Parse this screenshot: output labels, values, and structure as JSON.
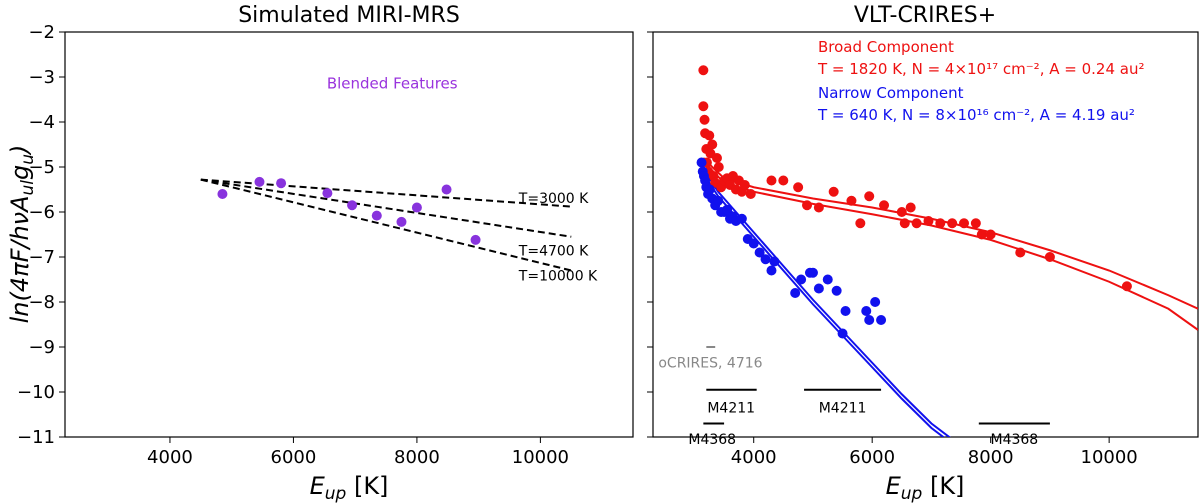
{
  "chart_data": [
    {
      "type": "scatter",
      "title": "Simulated MIRI-MRS",
      "xlabel": "E_up [K]",
      "ylabel": "ln(4πF/hνA_ul g_u)",
      "xlim": [
        2300,
        11500
      ],
      "ylim": [
        -11,
        -2
      ],
      "xticks": [
        4000,
        6000,
        8000,
        10000
      ],
      "yticks": [
        -2,
        -3,
        -4,
        -5,
        -6,
        -7,
        -8,
        -9,
        -10,
        -11
      ],
      "annotation": {
        "text": "Blended Features",
        "color": "#9933dd",
        "x": 7600,
        "y": -3.25
      },
      "series": [
        {
          "name": "MIRI points",
          "color": "#8833dd",
          "points": [
            [
              4850,
              -5.6
            ],
            [
              5450,
              -5.33
            ],
            [
              5800,
              -5.36
            ],
            [
              6550,
              -5.58
            ],
            [
              6950,
              -5.85
            ],
            [
              7350,
              -6.08
            ],
            [
              7750,
              -6.22
            ],
            [
              8000,
              -5.9
            ],
            [
              8480,
              -5.5
            ],
            [
              8950,
              -6.62
            ]
          ]
        }
      ],
      "fit_lines": [
        {
          "label": "T=3000 K",
          "x": [
            4500,
            10500
          ],
          "y": [
            -5.28,
            -5.88
          ],
          "label_x": 9650,
          "label_y": -5.8
        },
        {
          "label": "T=4700 K",
          "x": [
            4500,
            10500
          ],
          "y": [
            -5.28,
            -6.55
          ],
          "label_x": 9650,
          "label_y": -6.97
        },
        {
          "label": "T=10000 K",
          "x": [
            4500,
            10500
          ],
          "y": [
            -5.28,
            -7.3
          ],
          "label_x": 9650,
          "label_y": -7.52
        }
      ]
    },
    {
      "type": "scatter",
      "title": "VLT-CRIRES+",
      "xlabel": "E_up [K]",
      "xlim": [
        2300,
        11500
      ],
      "ylim": [
        -11,
        -2
      ],
      "xticks": [
        4000,
        6000,
        8000,
        10000
      ],
      "legend": [
        {
          "name": "Broad Component",
          "params": "T = 1820 K, N = 4×10¹⁷ cm⁻², A = 0.24 au²",
          "color": "#ee1111"
        },
        {
          "name": "Narrow Component",
          "params": "T = 640 K, N = 8×10¹⁶ cm⁻², A = 4.19 au²",
          "color": "#1111ee"
        }
      ],
      "series": [
        {
          "name": "Broad Component",
          "color": "#ee1111",
          "points": [
            [
              3150,
              -2.85
            ],
            [
              3150,
              -3.65
            ],
            [
              3170,
              -3.95
            ],
            [
              3180,
              -4.25
            ],
            [
              3200,
              -4.6
            ],
            [
              3210,
              -4.9
            ],
            [
              3230,
              -5.1
            ],
            [
              3250,
              -4.3
            ],
            [
              3270,
              -4.7
            ],
            [
              3300,
              -4.5
            ],
            [
              3320,
              -5.2
            ],
            [
              3350,
              -5.35
            ],
            [
              3380,
              -4.8
            ],
            [
              3410,
              -5.0
            ],
            [
              3450,
              -5.45
            ],
            [
              3500,
              -5.3
            ],
            [
              3550,
              -5.25
            ],
            [
              3600,
              -5.4
            ],
            [
              3650,
              -5.2
            ],
            [
              3700,
              -5.5
            ],
            [
              3750,
              -5.3
            ],
            [
              3800,
              -5.55
            ],
            [
              3850,
              -5.4
            ],
            [
              3950,
              -5.6
            ],
            [
              4300,
              -5.3
            ],
            [
              4500,
              -5.3
            ],
            [
              4750,
              -5.45
            ],
            [
              4900,
              -5.85
            ],
            [
              5100,
              -5.9
            ],
            [
              5350,
              -5.55
            ],
            [
              5650,
              -5.75
            ],
            [
              5800,
              -6.25
            ],
            [
              5950,
              -5.65
            ],
            [
              6200,
              -5.85
            ],
            [
              6550,
              -6.25
            ],
            [
              6750,
              -6.25
            ],
            [
              6950,
              -6.2
            ],
            [
              7150,
              -6.25
            ],
            [
              7350,
              -6.25
            ],
            [
              7550,
              -6.25
            ],
            [
              7750,
              -6.25
            ],
            [
              7850,
              -6.5
            ],
            [
              8000,
              -6.5
            ],
            [
              8500,
              -6.9
            ],
            [
              9000,
              -7.0
            ],
            [
              10300,
              -7.65
            ],
            [
              6500,
              -6.0
            ],
            [
              6650,
              -5.9
            ]
          ],
          "model_curves": [
            {
              "x": [
                3150,
                3300,
                3500,
                4000,
                5000,
                6000,
                7000,
                8000,
                9000,
                10000,
                11000,
                11500
              ],
              "y": [
                -4.8,
                -5.0,
                -5.25,
                -5.45,
                -5.7,
                -5.9,
                -6.15,
                -6.45,
                -6.85,
                -7.3,
                -7.85,
                -8.15
              ]
            },
            {
              "x": [
                3150,
                3300,
                3500,
                4000,
                5000,
                6000,
                7000,
                8000,
                9000,
                10000,
                11000,
                11500
              ],
              "y": [
                -4.85,
                -5.08,
                -5.35,
                -5.55,
                -5.82,
                -6.05,
                -6.3,
                -6.62,
                -7.05,
                -7.55,
                -8.15,
                -8.62
              ]
            }
          ]
        },
        {
          "name": "Narrow Component",
          "color": "#1111ee",
          "points": [
            [
              3120,
              -4.9
            ],
            [
              3140,
              -5.1
            ],
            [
              3160,
              -5.2
            ],
            [
              3180,
              -5.3
            ],
            [
              3200,
              -5.45
            ],
            [
              3230,
              -5.6
            ],
            [
              3260,
              -5.5
            ],
            [
              3300,
              -5.7
            ],
            [
              3350,
              -5.85
            ],
            [
              3400,
              -5.75
            ],
            [
              3450,
              -6.0
            ],
            [
              3500,
              -6.0
            ],
            [
              3550,
              -5.95
            ],
            [
              3600,
              -6.15
            ],
            [
              3650,
              -6.1
            ],
            [
              3700,
              -6.2
            ],
            [
              3800,
              -6.15
            ],
            [
              3900,
              -6.6
            ],
            [
              4000,
              -6.7
            ],
            [
              4100,
              -6.9
            ],
            [
              4200,
              -7.05
            ],
            [
              4300,
              -7.3
            ],
            [
              4350,
              -7.1
            ],
            [
              4800,
              -7.5
            ],
            [
              4950,
              -7.35
            ],
            [
              5100,
              -7.7
            ],
            [
              5250,
              -7.5
            ],
            [
              5400,
              -7.75
            ],
            [
              5500,
              -8.7
            ],
            [
              5550,
              -8.2
            ],
            [
              5900,
              -8.2
            ],
            [
              5950,
              -8.4
            ],
            [
              6050,
              -8.0
            ],
            [
              6150,
              -8.4
            ],
            [
              4700,
              -7.8
            ],
            [
              5000,
              -7.35
            ]
          ],
          "model_curves": [
            {
              "x": [
                3100,
                3200,
                3400,
                3700,
                4000,
                4500,
                5000,
                5500,
                6000,
                6500,
                7000,
                7500
              ],
              "y": [
                -4.8,
                -5.15,
                -5.55,
                -6.0,
                -6.45,
                -7.2,
                -7.95,
                -8.65,
                -9.35,
                -10.05,
                -10.7,
                -11.2
              ]
            },
            {
              "x": [
                3100,
                3200,
                3400,
                3700,
                4000,
                4500,
                5000,
                5500,
                6000,
                6500,
                7000,
                7500
              ],
              "y": [
                -4.9,
                -5.25,
                -5.65,
                -6.1,
                -6.55,
                -7.3,
                -8.05,
                -8.75,
                -9.45,
                -10.15,
                -10.8,
                -11.3
              ]
            }
          ]
        }
      ],
      "range_bars": [
        {
          "label": "oCRIRES, 4716",
          "color": "#888888",
          "x": [
            3200,
            3350
          ],
          "y": -9.0,
          "label_x": 3270,
          "label_y": -9.45
        },
        {
          "label": "M4211",
          "color": "#000000",
          "x": [
            3200,
            4050
          ],
          "y": -9.95,
          "label_x": 3620,
          "label_y": -10.45
        },
        {
          "label": "M4211",
          "color": "#000000",
          "x": [
            4850,
            6150
          ],
          "y": -9.95,
          "label_x": 5500,
          "label_y": -10.45
        },
        {
          "label": "M4368",
          "color": "#000000",
          "x": [
            3150,
            3500
          ],
          "y": -10.7,
          "label_x": 3300,
          "label_y": -11.15
        },
        {
          "label": "M4368",
          "color": "#000000",
          "x": [
            7800,
            9000
          ],
          "y": -10.7,
          "label_x": 8400,
          "label_y": -11.15
        }
      ]
    }
  ]
}
